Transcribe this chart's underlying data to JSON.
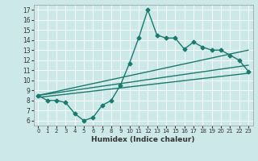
{
  "title": "",
  "xlabel": "Humidex (Indice chaleur)",
  "bg_color": "#cce8e8",
  "line_color": "#1a7a6e",
  "xlim": [
    -0.5,
    23.5
  ],
  "ylim": [
    5.5,
    17.5
  ],
  "xticks": [
    0,
    1,
    2,
    3,
    4,
    5,
    6,
    7,
    8,
    9,
    10,
    11,
    12,
    13,
    14,
    15,
    16,
    17,
    18,
    19,
    20,
    21,
    22,
    23
  ],
  "yticks": [
    6,
    7,
    8,
    9,
    10,
    11,
    12,
    13,
    14,
    15,
    16,
    17
  ],
  "main_x": [
    0,
    1,
    2,
    3,
    4,
    5,
    6,
    7,
    8,
    9,
    10,
    11,
    12,
    13,
    14,
    15,
    16,
    17,
    18,
    19,
    20,
    21,
    22,
    23
  ],
  "main_y": [
    8.5,
    8.0,
    8.0,
    7.8,
    6.7,
    6.0,
    6.3,
    7.5,
    8.0,
    9.5,
    11.7,
    14.2,
    17.0,
    14.5,
    14.2,
    14.2,
    13.1,
    13.8,
    13.3,
    13.0,
    13.0,
    12.5,
    12.0,
    10.9
  ],
  "trend1_x": [
    0,
    23
  ],
  "trend1_y": [
    8.5,
    11.5
  ],
  "trend2_x": [
    0,
    23
  ],
  "trend2_y": [
    8.5,
    13.0
  ],
  "trend3_x": [
    0,
    23
  ],
  "trend3_y": [
    8.3,
    10.7
  ],
  "xlabel_fontsize": 6.5,
  "tick_fontsize_x": 5.0,
  "tick_fontsize_y": 5.5,
  "linewidth": 1.0,
  "markersize": 2.5
}
